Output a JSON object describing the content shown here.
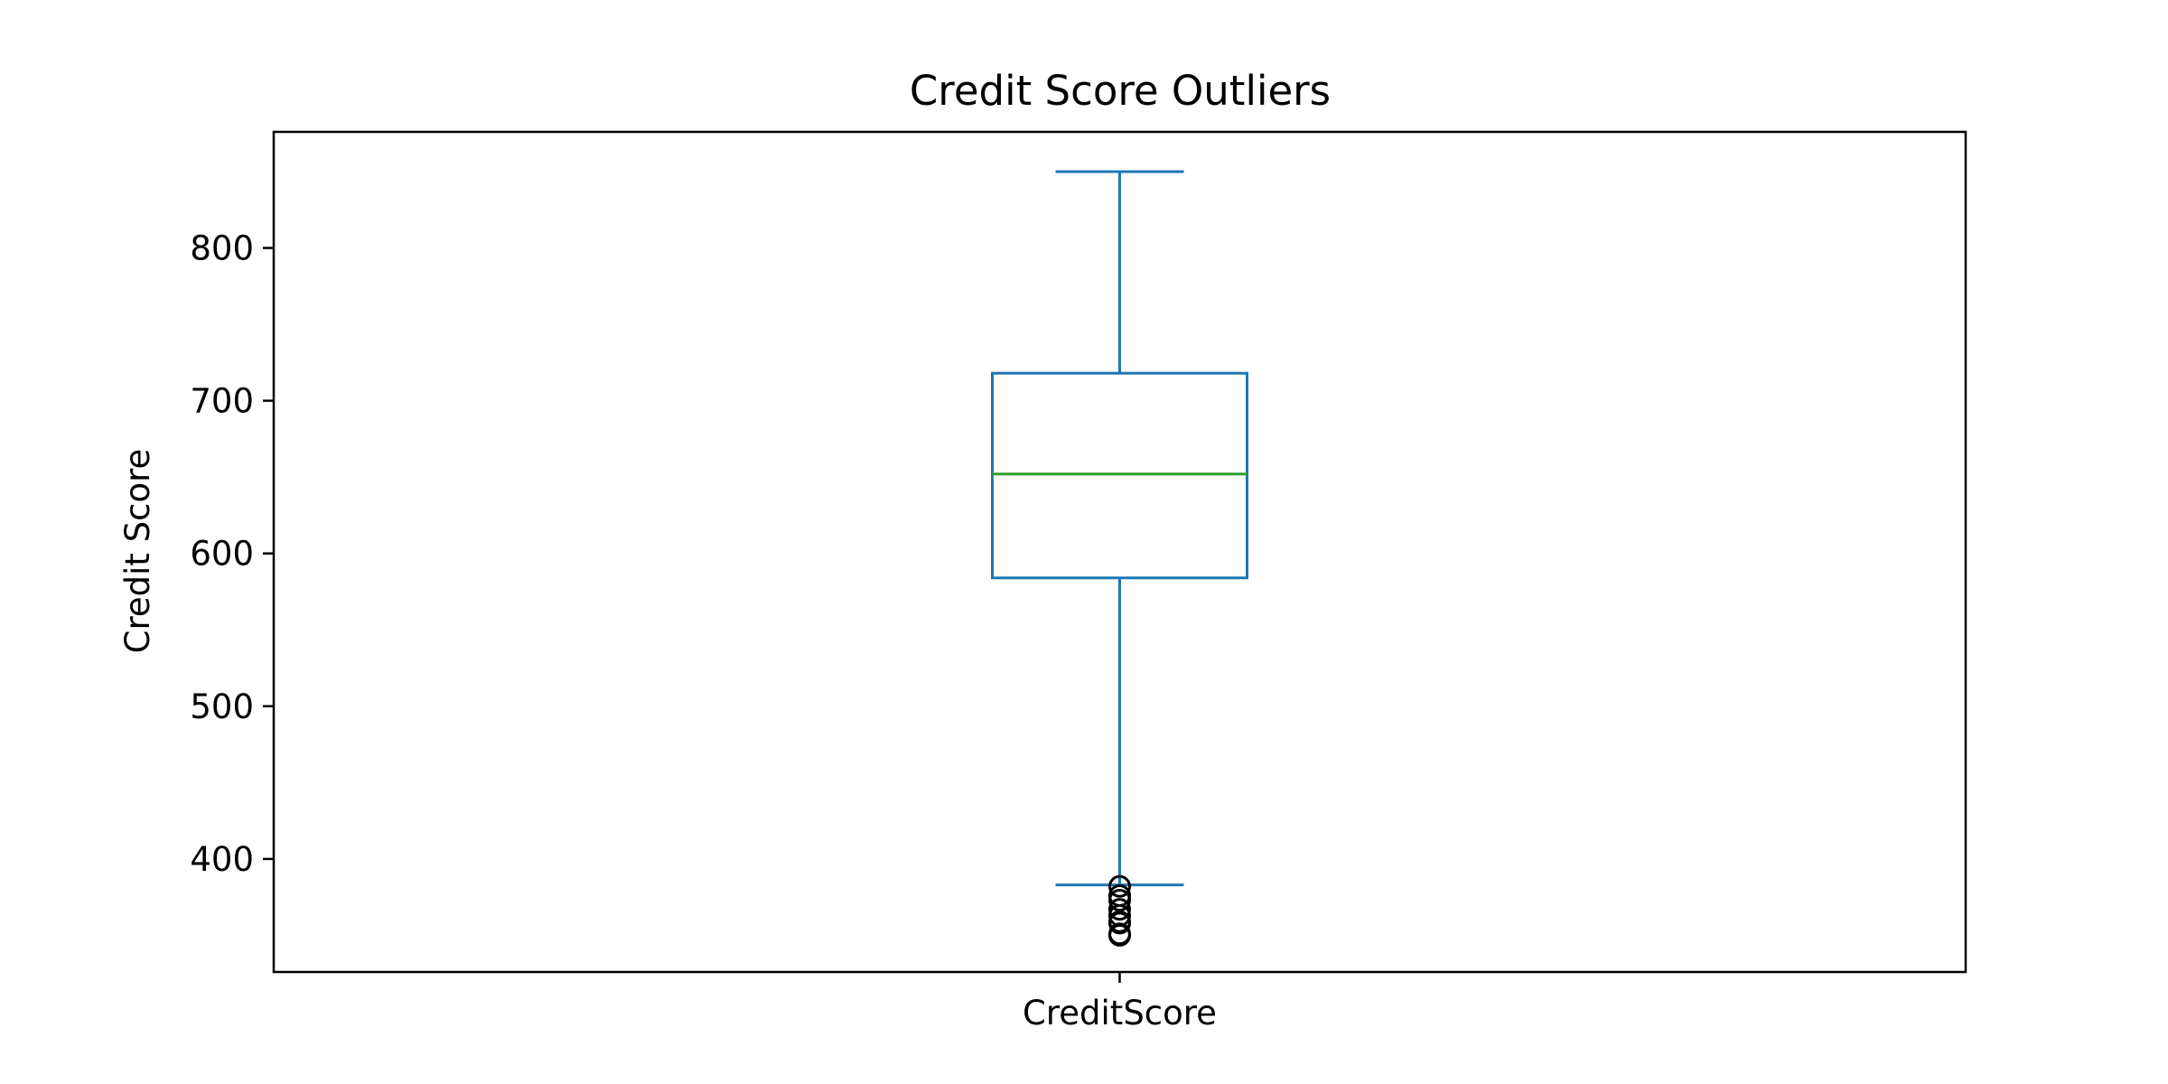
{
  "chart_data": {
    "type": "box",
    "title": "Credit Score Outliers",
    "xlabel": "",
    "ylabel": "Credit Score",
    "categories": [
      "CreditScore"
    ],
    "ylim": [
      326,
      876
    ],
    "y_ticks": [
      400,
      500,
      600,
      700,
      800
    ],
    "grid": false,
    "box": {
      "whisker_low": 383,
      "q1": 584,
      "median": 652,
      "q3": 718,
      "whisker_high": 850
    },
    "outliers": [
      382,
      376,
      373,
      367,
      363,
      359,
      358,
      351,
      350
    ],
    "colors": {
      "box": "#1f77b4",
      "median": "#2ca02c",
      "outlier": "#000000"
    }
  }
}
